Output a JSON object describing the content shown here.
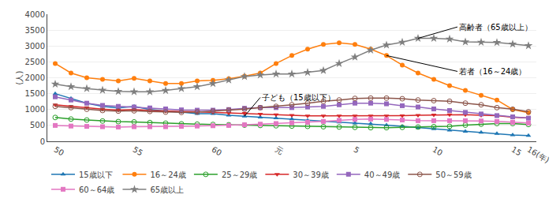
{
  "chart_data": {
    "type": "line",
    "ylabel": "(人)",
    "categories": [
      "50",
      null,
      null,
      null,
      null,
      "55",
      null,
      null,
      null,
      null,
      "60",
      null,
      null,
      null,
      "元",
      null,
      null,
      null,
      null,
      "5",
      null,
      null,
      null,
      null,
      "10",
      null,
      null,
      null,
      null,
      "15",
      "16(年)"
    ],
    "ylim": [
      0,
      4000
    ],
    "yticks": [
      0,
      500,
      1000,
      1500,
      2000,
      2500,
      3000,
      3500,
      4000
    ],
    "grid": true,
    "legend": "bottom",
    "series": [
      {
        "name": "15歳以下",
        "marker": "triangle-up",
        "values": [
          1500,
          1350,
          1200,
          1100,
          1050,
          1100,
          1000,
          950,
          920,
          870,
          870,
          820,
          790,
          760,
          730,
          700,
          660,
          630,
          600,
          570,
          550,
          510,
          470,
          430,
          390,
          350,
          310,
          280,
          240,
          200,
          180
        ]
      },
      {
        "name": "16～24歳",
        "marker": "circle",
        "values": [
          2450,
          2150,
          2000,
          1950,
          1900,
          1980,
          1900,
          1820,
          1820,
          1900,
          1920,
          1970,
          2050,
          2150,
          2450,
          2700,
          2900,
          3050,
          3100,
          3050,
          2900,
          2700,
          2400,
          2150,
          1950,
          1750,
          1600,
          1450,
          1300,
          1000,
          900
        ]
      },
      {
        "name": "25～29歳",
        "marker": "circle-open",
        "values": [
          750,
          700,
          670,
          640,
          620,
          610,
          590,
          570,
          550,
          540,
          530,
          520,
          510,
          500,
          490,
          480,
          470,
          460,
          450,
          440,
          430,
          430,
          440,
          450,
          460,
          470,
          510,
          540,
          560,
          560,
          530
        ]
      },
      {
        "name": "30～39歳",
        "marker": "triangle-down",
        "values": [
          1150,
          1100,
          1060,
          1010,
          980,
          1000,
          970,
          950,
          940,
          930,
          910,
          890,
          880,
          860,
          840,
          820,
          800,
          800,
          800,
          800,
          800,
          800,
          810,
          820,
          830,
          840,
          840,
          820,
          810,
          760,
          730
        ]
      },
      {
        "name": "40～49歳",
        "marker": "square",
        "values": [
          1400,
          1300,
          1200,
          1130,
          1100,
          1080,
          1050,
          1020,
          990,
          980,
          980,
          1000,
          1040,
          1060,
          1060,
          1060,
          1080,
          1100,
          1150,
          1200,
          1200,
          1180,
          1120,
          1080,
          1020,
          970,
          910,
          860,
          810,
          770,
          730
        ]
      },
      {
        "name": "50～59歳",
        "marker": "circle-open",
        "values": [
          1100,
          1060,
          1010,
          970,
          950,
          960,
          940,
          920,
          910,
          920,
          950,
          980,
          1010,
          1060,
          1100,
          1150,
          1200,
          1260,
          1300,
          1350,
          1360,
          1360,
          1340,
          1300,
          1280,
          1260,
          1200,
          1150,
          1060,
          1010,
          930
        ]
      },
      {
        "name": "60～64歳",
        "marker": "square",
        "values": [
          500,
          480,
          470,
          460,
          450,
          460,
          460,
          460,
          470,
          480,
          490,
          500,
          520,
          540,
          560,
          580,
          600,
          625,
          660,
          690,
          700,
          690,
          670,
          650,
          650,
          650,
          650,
          640,
          625,
          600,
          575
        ]
      },
      {
        "name": "65歳以上",
        "marker": "star",
        "values": [
          1800,
          1720,
          1660,
          1610,
          1570,
          1560,
          1560,
          1600,
          1660,
          1720,
          1820,
          1930,
          2040,
          2090,
          2120,
          2120,
          2170,
          2230,
          2450,
          2650,
          2870,
          3030,
          3120,
          3240,
          3240,
          3220,
          3130,
          3120,
          3110,
          3060,
          3010
        ]
      }
    ],
    "annotations": [
      {
        "text": "高齢者（65歳以上）",
        "series": "65歳以上",
        "index": 23,
        "text_x": 25.5,
        "text_y": 3600
      },
      {
        "text": "若者（16～24歳）",
        "series": "16～24歳",
        "index": 21,
        "text_x": 25.5,
        "text_y": 2200
      },
      {
        "text": "子ども（15歳以下）",
        "series": "15歳以下",
        "index": 12,
        "text_x": 13,
        "text_y": 1380
      }
    ]
  }
}
